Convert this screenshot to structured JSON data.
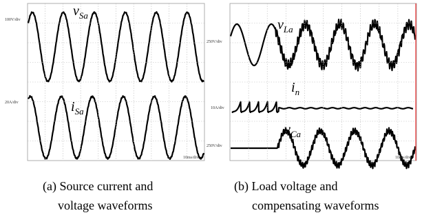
{
  "panels": [
    {
      "scales": [
        "100V/div",
        "20A/div"
      ],
      "time": "10ms/div",
      "labels": [
        {
          "symbol": "v",
          "subscript": "Sa"
        },
        {
          "symbol": "i",
          "subscript": "Sa"
        }
      ],
      "caption": [
        "(a) Source current and",
        "voltage waveforms"
      ]
    },
    {
      "scales": [
        "250V/div",
        "10A/div",
        "250V/div"
      ],
      "time": "10ms/div",
      "labels": [
        {
          "symbol": "v",
          "subscript": "La"
        },
        {
          "symbol": "i",
          "subscript": "n"
        },
        {
          "symbol": "v",
          "subscript": "Ca"
        }
      ],
      "caption": [
        "(b) Load voltage and",
        "compensating waveforms"
      ]
    }
  ]
}
